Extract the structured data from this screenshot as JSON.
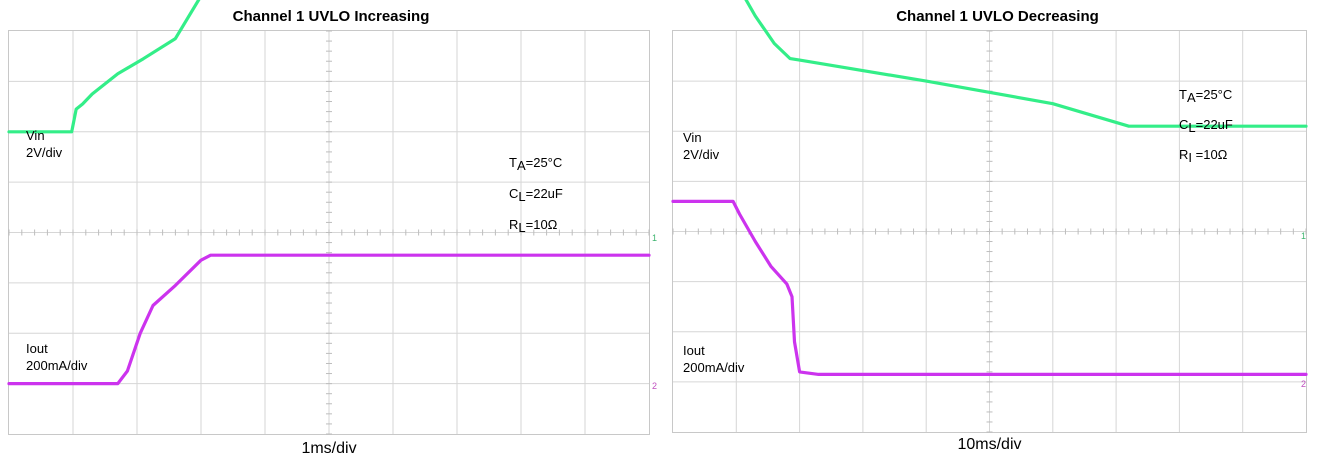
{
  "chart_data": [
    {
      "type": "line",
      "title": "Channel 1 UVLO Increasing",
      "timebase": "1ms/div",
      "grid": true,
      "divisions": {
        "x": 10,
        "y": 8
      },
      "series": [
        {
          "label_line1": "Vin",
          "label_line2": "2V/div",
          "color": "#33ee88",
          "x": [
            0,
            0.98,
            1.05,
            1.15,
            1.3,
            1.7,
            2.1,
            2.6,
            3.05,
            3.15,
            4,
            5,
            6,
            7,
            8,
            9,
            10
          ],
          "y": [
            2.0,
            2.0,
            2.45,
            2.55,
            2.75,
            3.15,
            3.45,
            3.85,
            4.8,
            4.85,
            4.85,
            4.85,
            4.85,
            4.85,
            4.85,
            4.85,
            4.85
          ]
        },
        {
          "label_line1": "Iout",
          "label_line2": "200mA/div",
          "color": "#cc33ee",
          "x": [
            0,
            1.7,
            1.85,
            2.05,
            2.25,
            2.6,
            3.0,
            3.15,
            4,
            5,
            6,
            7,
            8,
            9,
            10
          ],
          "y": [
            -3.0,
            -3.0,
            -2.75,
            -2.0,
            -1.45,
            -1.05,
            -0.55,
            -0.45,
            -0.45,
            -0.45,
            -0.45,
            -0.45,
            -0.45,
            -0.45,
            -0.45
          ]
        }
      ],
      "conditions": {
        "ta": {
          "sym": "T",
          "sub": "A",
          "val": "=25°C"
        },
        "cl": {
          "sym": "C",
          "sub": "L",
          "val": "=22uF"
        },
        "rl": {
          "sym": "R",
          "sub": "L",
          "val": "=10Ω"
        }
      },
      "markers": [
        "1",
        "2"
      ]
    },
    {
      "type": "line",
      "title": "Channel 1 UVLO Decreasing",
      "timebase": "10ms/div",
      "grid": true,
      "divisions": {
        "x": 10,
        "y": 8
      },
      "series": [
        {
          "label_line1": "Vin",
          "label_line2": "2V/div",
          "color": "#33ee88",
          "x": [
            0,
            0.95,
            1.05,
            1.3,
            1.6,
            1.85,
            2.0,
            4,
            6,
            7.2,
            7.3,
            8,
            9,
            10
          ],
          "y": [
            5.05,
            5.05,
            4.85,
            4.3,
            3.75,
            3.45,
            3.42,
            3.0,
            2.55,
            2.1,
            2.1,
            2.1,
            2.1,
            2.1
          ]
        },
        {
          "label_line1": "Iout",
          "label_line2": "200mA/div",
          "color": "#cc33ee",
          "x": [
            0,
            0.95,
            1.05,
            1.3,
            1.55,
            1.8,
            1.88,
            1.92,
            2.0,
            2.3,
            3,
            5,
            7,
            9,
            10
          ],
          "y": [
            0.6,
            0.6,
            0.35,
            -0.2,
            -0.7,
            -1.05,
            -1.3,
            -2.2,
            -2.8,
            -2.85,
            -2.85,
            -2.85,
            -2.85,
            -2.85,
            -2.85
          ]
        }
      ],
      "conditions": {
        "ta": {
          "sym": "T",
          "sub": "A",
          "val": "=25°C"
        },
        "cl": {
          "sym": "C",
          "sub": "L",
          "val": "=22uF"
        },
        "rl": {
          "sym": "R",
          "sub": "I",
          "val": " =10Ω"
        }
      },
      "markers": [
        "1",
        "2"
      ]
    }
  ]
}
